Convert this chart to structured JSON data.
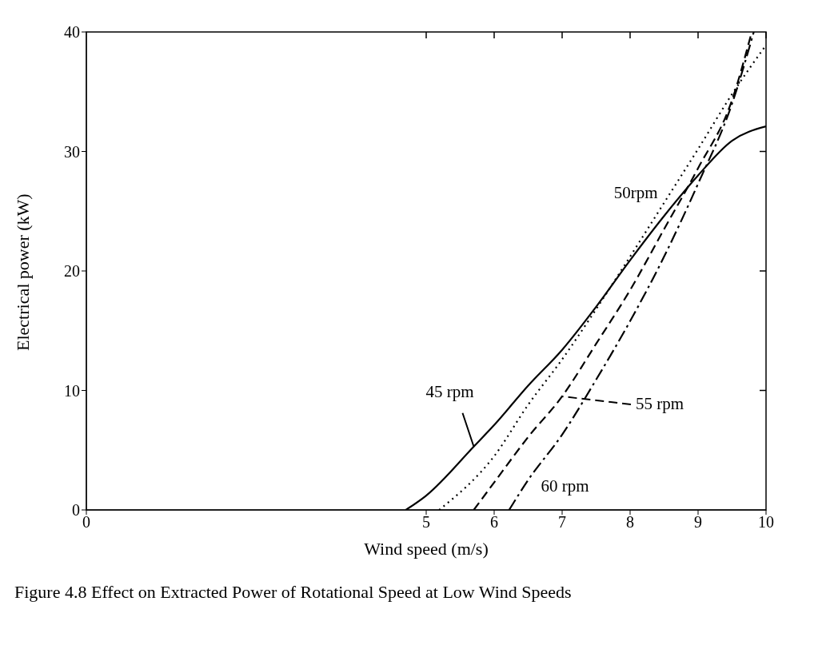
{
  "chart_data": {
    "type": "line",
    "xlabel": "Wind speed (m/s)",
    "ylabel": "Electrical power (kW)",
    "xlim": [
      0,
      10
    ],
    "xticks": [
      0,
      5,
      6,
      7,
      8,
      9,
      10
    ],
    "ylim": [
      0,
      40
    ],
    "yticks": [
      0,
      10,
      20,
      30,
      40
    ],
    "series": [
      {
        "name": "45 rpm",
        "color": "#000000",
        "line_style": "solid",
        "x": [
          4.7,
          5,
          5.7,
          6,
          6.5,
          7,
          7.5,
          8,
          8.5,
          9,
          9.5,
          10
        ],
        "values": [
          0,
          1.2,
          5.3,
          7.1,
          10.4,
          13.4,
          17,
          20.9,
          24.6,
          28,
          30.9,
          32.1
        ]
      },
      {
        "name": "50rpm",
        "color": "#000000",
        "line_style": "dotted",
        "x": [
          5.19,
          6,
          6.5,
          7,
          7.5,
          8,
          8.5,
          9,
          9.5,
          10
        ],
        "values": [
          0,
          4.5,
          8.8,
          12.6,
          16.8,
          21.2,
          25.7,
          30.2,
          34.8,
          38.9
        ]
      },
      {
        "name": "55 rpm",
        "color": "#000000",
        "line_style": "dashed",
        "x": [
          5.7,
          6,
          6.5,
          7,
          7.5,
          8,
          8.5,
          9,
          9.5,
          9.79
        ],
        "values": [
          0,
          2.3,
          6.1,
          9.5,
          13.9,
          18.4,
          23.5,
          28.6,
          34.3,
          40
        ]
      },
      {
        "name": "60 rpm",
        "color": "#000000",
        "line_style": "dashdot",
        "x": [
          6.22,
          6.5,
          7,
          7.5,
          8,
          8.5,
          9,
          9.5,
          9.82
        ],
        "values": [
          0,
          2.5,
          6.3,
          10.9,
          15.8,
          21.2,
          27.3,
          34,
          40
        ]
      }
    ],
    "annotations": [
      "Figure 4.8    Effect on Extracted Power of Rotational Speed at Low Wind Speeds"
    ]
  }
}
